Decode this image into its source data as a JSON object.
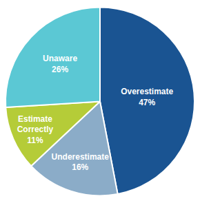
{
  "chart_data": {
    "type": "pie",
    "categories": [
      "Overestimate",
      "Underestimate",
      "Estimate\nCorrectly",
      "Unaware"
    ],
    "values": [
      47,
      16,
      11,
      26
    ],
    "value_labels": [
      "47%",
      "16%",
      "11%",
      "26%"
    ],
    "colors": [
      "#1a5492",
      "#8bacc8",
      "#b5cc38",
      "#5bc8d4"
    ],
    "data_labels": true
  }
}
